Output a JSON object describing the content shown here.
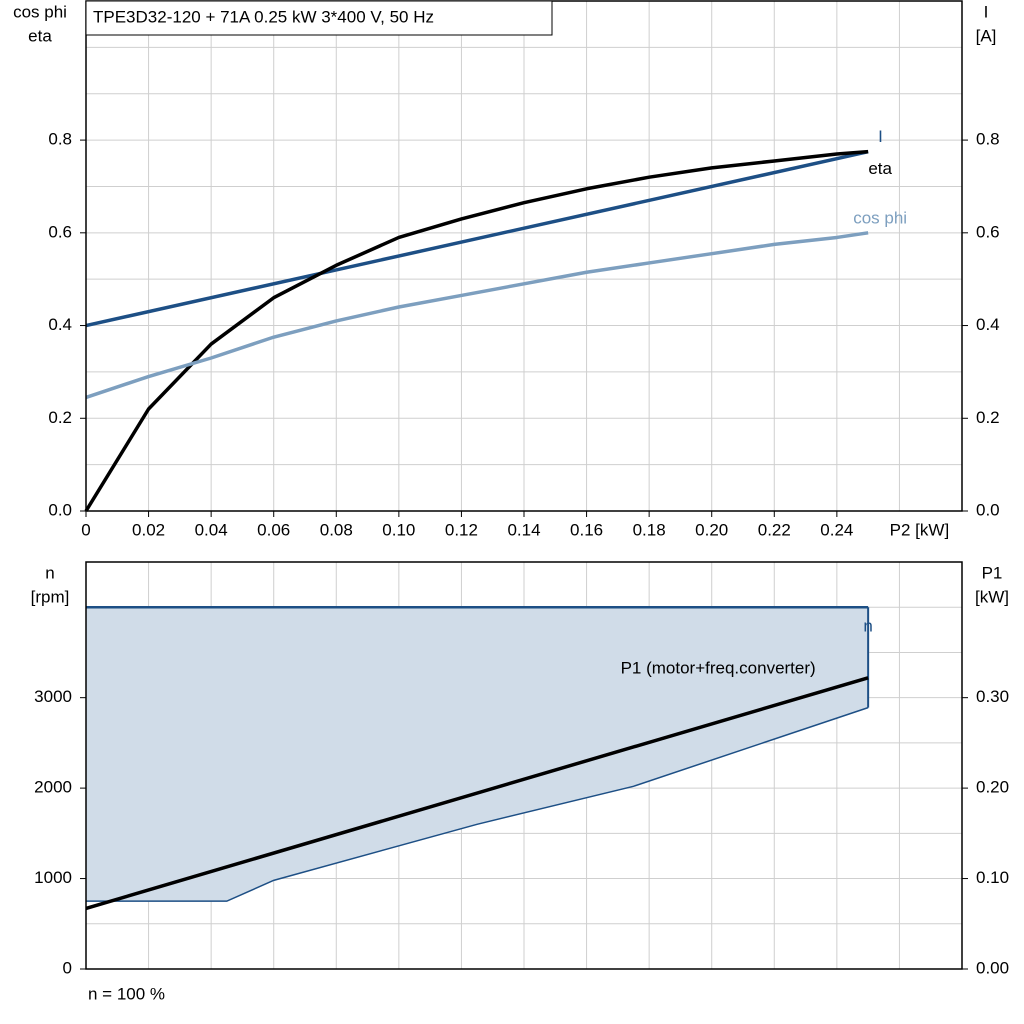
{
  "chart_data": [
    {
      "type": "line",
      "title": "TPE3D32-120 + 71A   0.25 kW   3*400 V, 50 Hz",
      "ylabel": [
        "cos phi",
        "eta"
      ],
      "y2label": [
        "I",
        "[A]"
      ],
      "xlabel": "P2 [kW]",
      "xlim": [
        0,
        0.28
      ],
      "xticks": [
        0,
        0.02,
        0.04,
        0.06,
        0.08,
        {
          "value": 0.1,
          "label": "0.10"
        },
        0.12,
        0.14,
        0.16,
        0.18,
        {
          "value": 0.2,
          "label": "0.20"
        },
        0.22,
        0.24
      ],
      "xgrid": [
        0.26
      ],
      "ylim": [
        0,
        1.1
      ],
      "yticks": [
        {
          "value": 0,
          "label": "0.0"
        },
        0.2,
        0.4,
        0.6,
        0.8
      ],
      "ygrid": [
        0.1,
        0.3,
        0.5,
        0.7,
        0.9,
        1.0
      ],
      "y2lim": [
        0,
        1.1
      ],
      "y2ticks": [
        {
          "value": 0,
          "label": "0.0"
        },
        0.2,
        0.4,
        0.6,
        0.8
      ],
      "series": [
        {
          "name": "I",
          "color": "#1d4f85",
          "axis": "y2",
          "x": [
            0,
            0.25
          ],
          "values": [
            0.4,
            0.775
          ]
        },
        {
          "name": "eta",
          "color": "#000000",
          "x": [
            0,
            0.02,
            0.04,
            0.06,
            0.08,
            0.1,
            0.12,
            0.14,
            0.16,
            0.18,
            0.2,
            0.22,
            0.24,
            0.25
          ],
          "values": [
            0,
            0.22,
            0.36,
            0.46,
            0.53,
            0.59,
            0.63,
            0.665,
            0.695,
            0.72,
            0.74,
            0.755,
            0.77,
            0.775
          ]
        },
        {
          "name": "cos phi",
          "color": "#7d9fbf",
          "x": [
            0,
            0.02,
            0.04,
            0.06,
            0.08,
            0.1,
            0.12,
            0.14,
            0.16,
            0.18,
            0.2,
            0.22,
            0.24,
            0.25
          ],
          "values": [
            0.245,
            0.29,
            0.33,
            0.375,
            0.41,
            0.44,
            0.465,
            0.49,
            0.515,
            0.535,
            0.555,
            0.575,
            0.59,
            0.6
          ]
        }
      ]
    },
    {
      "type": "line",
      "ylabel": [
        "n",
        "[rpm]"
      ],
      "y2label": [
        "P1",
        "[kW]"
      ],
      "footnote": "n = 100 %",
      "xlim": [
        0,
        0.28
      ],
      "xgrid": [
        0.02,
        0.04,
        0.06,
        0.08,
        0.1,
        0.12,
        0.14,
        0.16,
        0.18,
        0.2,
        0.22,
        0.24,
        0.26
      ],
      "ylim": [
        0,
        4500
      ],
      "yticks": [
        0,
        1000,
        2000,
        3000
      ],
      "ygrid": [
        500,
        1500,
        2500,
        3500,
        4000
      ],
      "y2lim": [
        0,
        0.45
      ],
      "y2ticks": [
        {
          "value": 0,
          "label": "0.00"
        },
        {
          "value": 0.1,
          "label": "0.10"
        },
        {
          "value": 0.2,
          "label": "0.20"
        },
        {
          "value": 0.3,
          "label": "0.30"
        }
      ],
      "area": {
        "name": "n",
        "color": "#1d4f85",
        "fill": "#d0dce8",
        "x": [
          0,
          0.045,
          0.06,
          0.125,
          0.175,
          0.25
        ],
        "upper": [
          4000,
          4000,
          4000,
          4000,
          4000,
          4000
        ],
        "lower": [
          750,
          750,
          980,
          1600,
          2020,
          2890
        ]
      },
      "series": [
        {
          "name": "P1 (motor+freq.converter)",
          "color": "#000000",
          "axis": "y2",
          "x": [
            0,
            0.25
          ],
          "values": [
            0.067,
            0.322
          ]
        }
      ]
    }
  ]
}
